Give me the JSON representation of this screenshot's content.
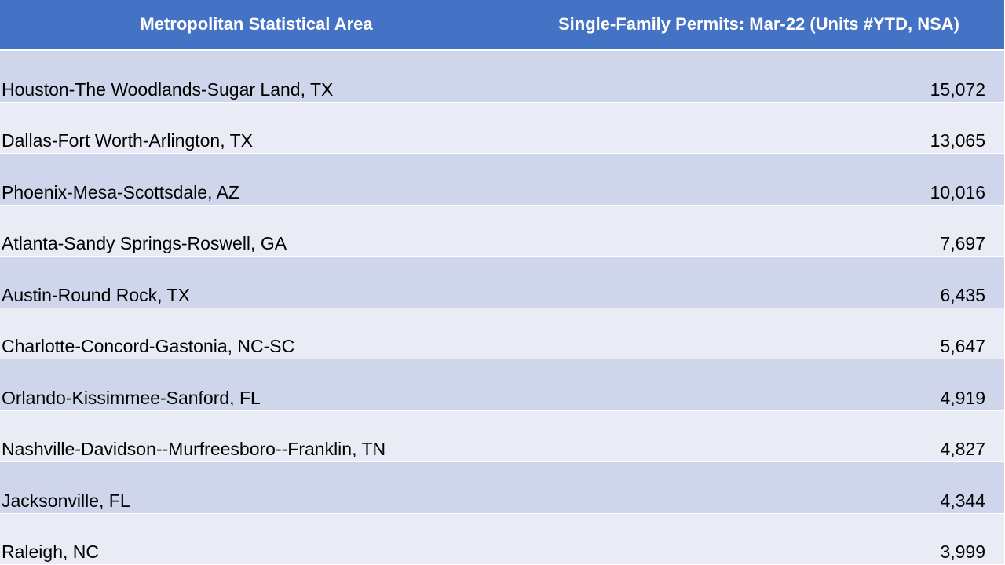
{
  "table": {
    "headers": {
      "metro": "Metropolitan Statistical Area",
      "permits": "Single-Family Permits: Mar-22 (Units #YTD, NSA)"
    },
    "rows": [
      {
        "metro": "Houston-The Woodlands-Sugar Land, TX",
        "permits": "15,072"
      },
      {
        "metro": "Dallas-Fort Worth-Arlington, TX",
        "permits": "13,065"
      },
      {
        "metro": "Phoenix-Mesa-Scottsdale, AZ",
        "permits": "10,016"
      },
      {
        "metro": "Atlanta-Sandy Springs-Roswell, GA",
        "permits": "7,697"
      },
      {
        "metro": "Austin-Round Rock, TX",
        "permits": "6,435"
      },
      {
        "metro": "Charlotte-Concord-Gastonia, NC-SC",
        "permits": "5,647"
      },
      {
        "metro": "Orlando-Kissimmee-Sanford, FL",
        "permits": "4,919"
      },
      {
        "metro": "Nashville-Davidson--Murfreesboro--Franklin, TN",
        "permits": "4,827"
      },
      {
        "metro": "Jacksonville, FL",
        "permits": "4,344"
      },
      {
        "metro": "Raleigh, NC",
        "permits": "3,999"
      }
    ]
  },
  "colors": {
    "header_background": "#4472C4",
    "header_text": "#FFFFFF",
    "band_dark": "#CFD5EA",
    "band_light": "#E9EBF5"
  }
}
